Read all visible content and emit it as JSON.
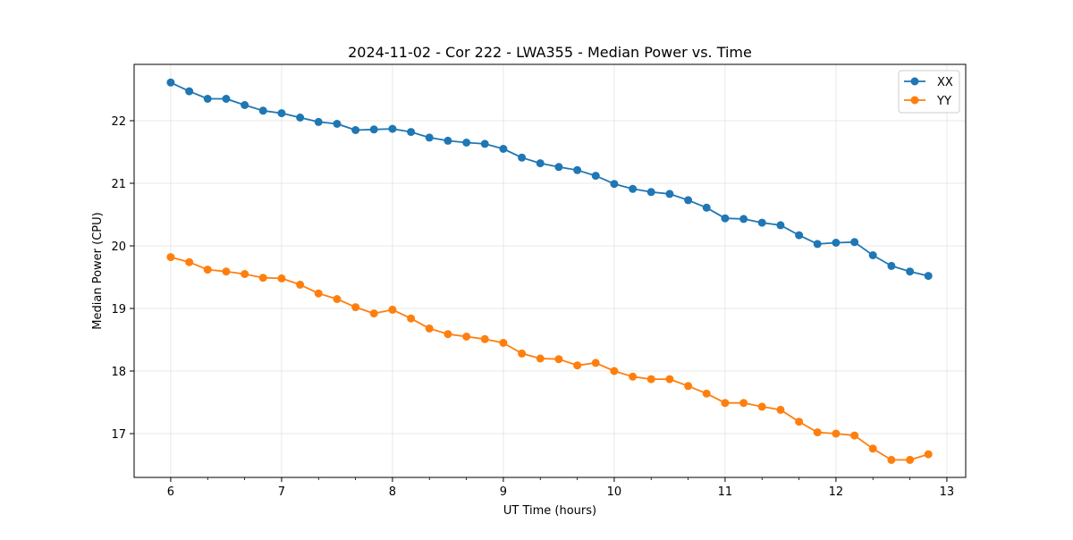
{
  "chart_data": {
    "type": "line",
    "title": "2024-11-02 - Cor 222 - LWA355 - Median Power vs. Time",
    "xlabel": "UT Time (hours)",
    "ylabel": "Median Power (CPU)",
    "xlim": [
      5.67,
      13.17
    ],
    "ylim": [
      16.3,
      22.9
    ],
    "xticks": [
      6,
      7,
      8,
      9,
      10,
      11,
      12,
      13
    ],
    "xtick_labels": [
      "6",
      "7",
      "8",
      "9",
      "10",
      "11",
      "12",
      "13"
    ],
    "yticks": [
      17,
      18,
      19,
      20,
      21,
      22
    ],
    "ytick_labels": [
      "17",
      "18",
      "19",
      "20",
      "21",
      "22"
    ],
    "grid": true,
    "legend_position": "top-right",
    "x": [
      6.0,
      6.167,
      6.333,
      6.5,
      6.667,
      6.833,
      7.0,
      7.167,
      7.333,
      7.5,
      7.667,
      7.833,
      8.0,
      8.167,
      8.333,
      8.5,
      8.667,
      8.833,
      9.0,
      9.167,
      9.333,
      9.5,
      9.667,
      9.833,
      10.0,
      10.167,
      10.333,
      10.5,
      10.667,
      10.833,
      11.0,
      11.167,
      11.333,
      11.5,
      11.667,
      11.833,
      12.0,
      12.167,
      12.333,
      12.5,
      12.667,
      12.833
    ],
    "series": [
      {
        "name": "XX",
        "color": "#1f77b4",
        "values": [
          22.61,
          22.47,
          22.35,
          22.35,
          22.25,
          22.16,
          22.12,
          22.05,
          21.98,
          21.95,
          21.85,
          21.86,
          21.87,
          21.82,
          21.73,
          21.68,
          21.65,
          21.63,
          21.55,
          21.41,
          21.32,
          21.26,
          21.21,
          21.12,
          20.99,
          20.91,
          20.86,
          20.83,
          20.73,
          20.61,
          20.44,
          20.43,
          20.37,
          20.33,
          20.17,
          20.03,
          20.05,
          20.06,
          19.85,
          19.68,
          19.59,
          19.52
        ]
      },
      {
        "name": "YY",
        "color": "#ff7f0e",
        "values": [
          19.82,
          19.74,
          19.62,
          19.59,
          19.55,
          19.49,
          19.48,
          19.38,
          19.24,
          19.15,
          19.02,
          18.92,
          18.98,
          18.84,
          18.68,
          18.59,
          18.55,
          18.51,
          18.45,
          18.28,
          18.2,
          18.19,
          18.09,
          18.13,
          18.0,
          17.91,
          17.87,
          17.87,
          17.76,
          17.64,
          17.49,
          17.49,
          17.43,
          17.38,
          17.19,
          17.02,
          17.0,
          16.97,
          16.76,
          16.58,
          16.58,
          16.67
        ]
      }
    ]
  }
}
